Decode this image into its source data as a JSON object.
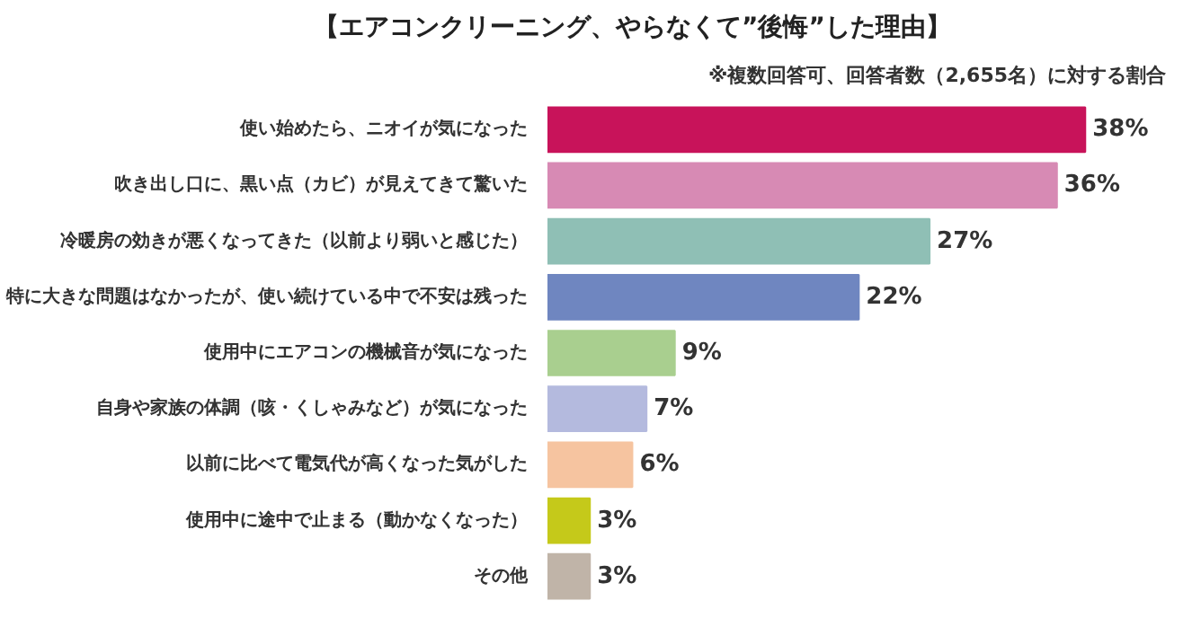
{
  "chart_data": {
    "type": "bar",
    "orientation": "horizontal",
    "title": "【エアコンクリーニング、やらなくて”後悔”した理由】",
    "subtitle": "※複数回答可、回答者数（2,655名）に対する割合",
    "categories": [
      "使い始めたら、ニオイが気になった",
      "吹き出し口に、黒い点（カビ）が見えてきて驚いた",
      "冷暖房の効きが悪くなってきた（以前より弱いと感じた）",
      "特に大きな問題はなかったが、使い続けている中で不安は残った",
      "使用中にエアコンの機械音が気になった",
      "自身や家族の体調（咳・くしゃみなど）が気になった",
      "以前に比べて電気代が高くなった気がした",
      "使用中に途中で止まる（動かなくなった）",
      "その他"
    ],
    "values": [
      38,
      36,
      27,
      22,
      9,
      7,
      6,
      3,
      3
    ],
    "colors": [
      "#c8135a",
      "#d78ab4",
      "#8fbfb5",
      "#6f86c0",
      "#a9cf8f",
      "#b4bade",
      "#f6c4a0",
      "#c5c91a",
      "#c0b4a8"
    ],
    "value_labels": [
      "38%",
      "36%",
      "27%",
      "22%",
      "9%",
      "7%",
      "6%",
      "3%",
      "3%"
    ],
    "grid": false
  }
}
